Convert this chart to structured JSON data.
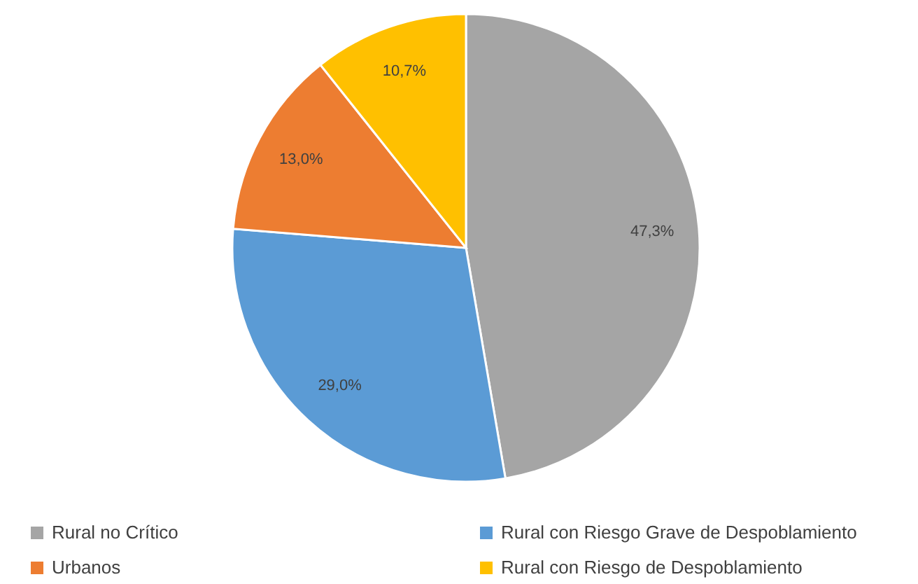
{
  "chart_data": {
    "type": "pie",
    "categories": [
      "Rural no Crítico",
      "Rural con Riesgo Grave de Despoblamiento",
      "Urbanos",
      "Rural con Riesgo de Despoblamiento"
    ],
    "values": [
      47.3,
      29.0,
      13.0,
      10.7
    ],
    "colors": [
      "#a5a5a5",
      "#5b9bd5",
      "#ed7d31",
      "#ffc000"
    ],
    "value_labels": [
      "47,3%",
      "29,0%",
      "13,0%",
      "10,7%"
    ],
    "legend": "bottom"
  }
}
